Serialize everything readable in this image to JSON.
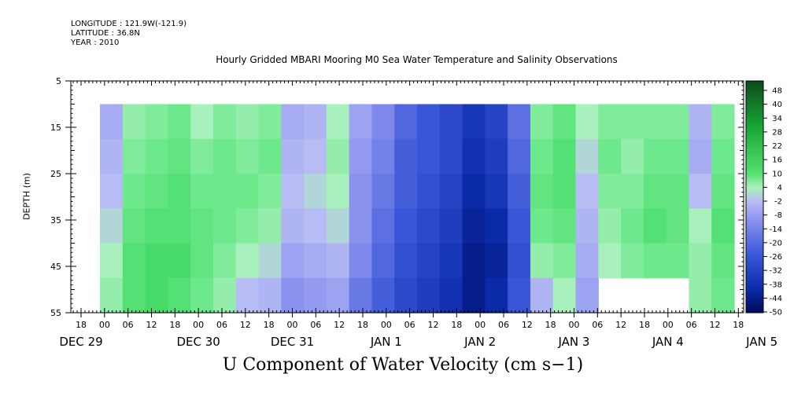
{
  "meta": {
    "longitude": "LONGITUDE : 121.9W(-121.9)",
    "latitude": "LATITUDE : 36.8N",
    "year": "YEAR : 2010"
  },
  "chart_data": {
    "type": "heatmap",
    "title": "Hourly Gridded MBARI Mooring M0 Sea Water Temperature and Salinity Observations",
    "xlabel": "U Component of Water Velocity (cm s−1)",
    "ylabel": "DEPTH (m)",
    "y_ticks": [
      5,
      15,
      25,
      35,
      45,
      55
    ],
    "ylim": [
      55,
      5
    ],
    "x_hour_ticks": [
      "18",
      "00",
      "06",
      "12",
      "18",
      "00",
      "06",
      "12",
      "18",
      "00",
      "06",
      "12",
      "18",
      "00",
      "06",
      "12",
      "18",
      "00",
      "06",
      "12",
      "18",
      "00",
      "06",
      "12",
      "18",
      "00",
      "06",
      "12",
      "18",
      "00",
      "06",
      "12"
    ],
    "x_date_labels": [
      "DEC 29",
      "DEC 30",
      "DEC 31",
      "JAN  1",
      "JAN  2",
      "JAN  3",
      "JAN  4",
      "JAN  5"
    ],
    "colorbar_ticks": [
      "48",
      "40",
      "34",
      "28",
      "22",
      "16",
      "10",
      "4",
      "-2",
      "-8",
      "-14",
      "-20",
      "-26",
      "-32",
      "-38",
      "-44",
      "-50"
    ],
    "colorbar_range": [
      -50,
      48
    ],
    "data_depth_range": [
      10,
      55
    ],
    "columns": [
      {
        "label": "DEC 29 18",
        "u": [
          -6,
          -4,
          -2,
          0,
          2,
          4
        ]
      },
      {
        "label": "DEC 30 00",
        "u": [
          4,
          6,
          8,
          10,
          12,
          12
        ]
      },
      {
        "label": "DEC 30 06",
        "u": [
          6,
          8,
          10,
          12,
          14,
          14
        ]
      },
      {
        "label": "DEC 30 12",
        "u": [
          8,
          10,
          12,
          12,
          14,
          12
        ]
      },
      {
        "label": "DEC 30 18",
        "u": [
          2,
          6,
          8,
          10,
          10,
          8
        ]
      },
      {
        "label": "DEC 31 00",
        "u": [
          6,
          8,
          8,
          8,
          6,
          4
        ]
      },
      {
        "label": "DEC 31 06",
        "u": [
          4,
          6,
          8,
          6,
          2,
          -2
        ]
      },
      {
        "label": "DEC 31 12",
        "u": [
          6,
          8,
          6,
          4,
          0,
          -4
        ]
      },
      {
        "label": "DEC 31 18",
        "u": [
          -6,
          -4,
          -2,
          -4,
          -8,
          -12
        ]
      },
      {
        "label": "JAN 1 00",
        "u": [
          -4,
          -2,
          0,
          -2,
          -6,
          -10
        ]
      },
      {
        "label": "JAN 1 06",
        "u": [
          2,
          4,
          2,
          0,
          -4,
          -8
        ]
      },
      {
        "label": "JAN 1 12",
        "u": [
          -8,
          -10,
          -12,
          -12,
          -14,
          -18
        ]
      },
      {
        "label": "JAN 1 18",
        "u": [
          -14,
          -16,
          -18,
          -20,
          -22,
          -24
        ]
      },
      {
        "label": "JAN 2 00",
        "u": [
          -22,
          -24,
          -24,
          -26,
          -28,
          -30
        ]
      },
      {
        "label": "JAN 2 06",
        "u": [
          -26,
          -26,
          -28,
          -30,
          -32,
          -34
        ]
      },
      {
        "label": "JAN 2 12",
        "u": [
          -30,
          -30,
          -32,
          -34,
          -36,
          -38
        ]
      },
      {
        "label": "JAN 2 18",
        "u": [
          -36,
          -38,
          -40,
          -42,
          -44,
          -44
        ]
      },
      {
        "label": "JAN 3 00",
        "u": [
          -32,
          -34,
          -36,
          -40,
          -42,
          -40
        ]
      },
      {
        "label": "JAN 3 06",
        "u": [
          -20,
          -22,
          -24,
          -26,
          -28,
          -26
        ]
      },
      {
        "label": "JAN 3 12",
        "u": [
          6,
          8,
          10,
          8,
          4,
          -4
        ]
      },
      {
        "label": "JAN 3 18",
        "u": [
          10,
          12,
          12,
          10,
          6,
          2
        ]
      },
      {
        "label": "JAN 4 00",
        "u": [
          2,
          0,
          -2,
          -4,
          -6,
          -8
        ]
      },
      {
        "label": "JAN 4 06",
        "u": [
          6,
          8,
          6,
          4,
          2,
          null
        ]
      },
      {
        "label": "JAN 4 12",
        "u": [
          6,
          4,
          6,
          8,
          6,
          null
        ]
      },
      {
        "label": "JAN 4 18",
        "u": [
          6,
          8,
          10,
          12,
          8,
          null
        ]
      },
      {
        "label": "JAN 5 00",
        "u": [
          6,
          8,
          10,
          10,
          8,
          null
        ]
      },
      {
        "label": "JAN 5 06",
        "u": [
          -4,
          -6,
          -2,
          2,
          4,
          4
        ]
      },
      {
        "label": "JAN 5 12",
        "u": [
          6,
          8,
          10,
          12,
          10,
          8
        ]
      }
    ]
  }
}
